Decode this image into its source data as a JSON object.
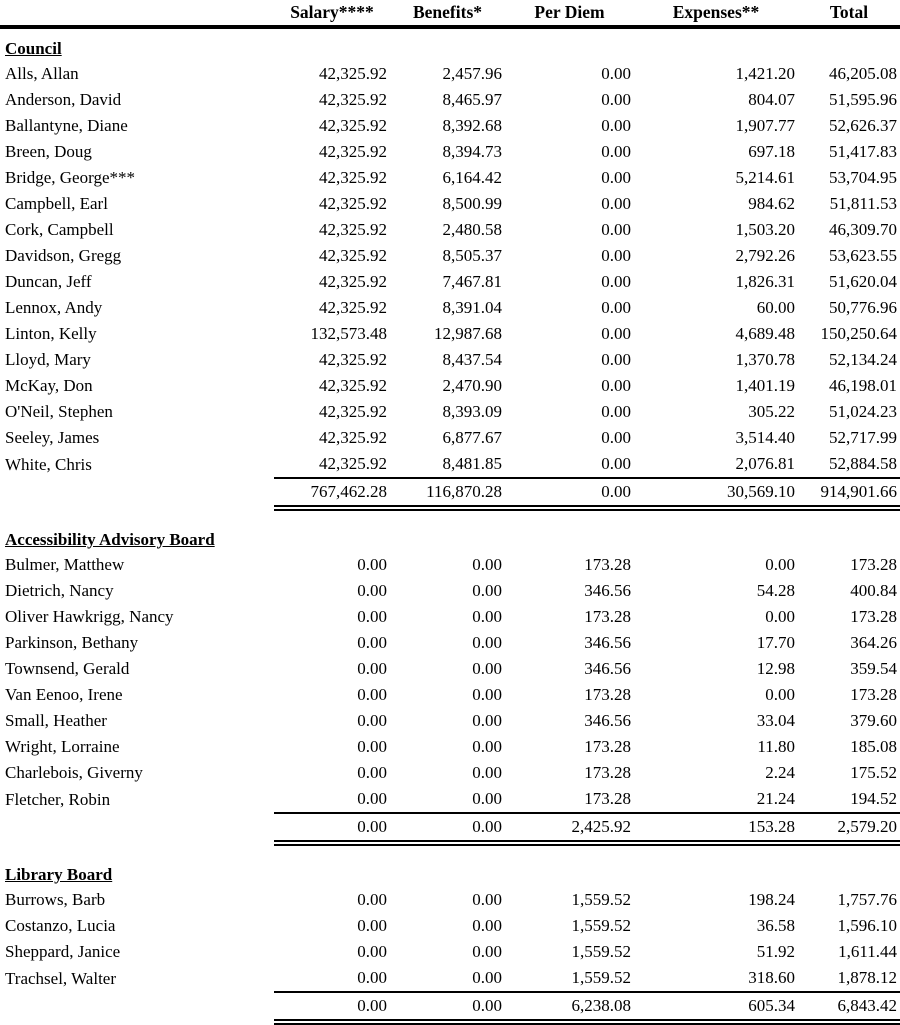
{
  "table": {
    "columns": [
      "Salary****",
      "Benefits*",
      "Per Diem",
      "Expenses**",
      "Total"
    ],
    "sections": [
      {
        "heading": "Council",
        "rows": [
          {
            "name": "Alls, Allan",
            "values": [
              "42,325.92",
              "2,457.96",
              "0.00",
              "1,421.20",
              "46,205.08"
            ]
          },
          {
            "name": "Anderson, David",
            "values": [
              "42,325.92",
              "8,465.97",
              "0.00",
              "804.07",
              "51,595.96"
            ]
          },
          {
            "name": "Ballantyne, Diane",
            "values": [
              "42,325.92",
              "8,392.68",
              "0.00",
              "1,907.77",
              "52,626.37"
            ]
          },
          {
            "name": "Breen, Doug",
            "values": [
              "42,325.92",
              "8,394.73",
              "0.00",
              "697.18",
              "51,417.83"
            ]
          },
          {
            "name": "Bridge, George***",
            "values": [
              "42,325.92",
              "6,164.42",
              "0.00",
              "5,214.61",
              "53,704.95"
            ]
          },
          {
            "name": "Campbell, Earl",
            "values": [
              "42,325.92",
              "8,500.99",
              "0.00",
              "984.62",
              "51,811.53"
            ]
          },
          {
            "name": "Cork, Campbell",
            "values": [
              "42,325.92",
              "2,480.58",
              "0.00",
              "1,503.20",
              "46,309.70"
            ]
          },
          {
            "name": "Davidson, Gregg",
            "values": [
              "42,325.92",
              "8,505.37",
              "0.00",
              "2,792.26",
              "53,623.55"
            ]
          },
          {
            "name": "Duncan, Jeff",
            "values": [
              "42,325.92",
              "7,467.81",
              "0.00",
              "1,826.31",
              "51,620.04"
            ]
          },
          {
            "name": "Lennox, Andy",
            "values": [
              "42,325.92",
              "8,391.04",
              "0.00",
              "60.00",
              "50,776.96"
            ]
          },
          {
            "name": "Linton, Kelly",
            "values": [
              "132,573.48",
              "12,987.68",
              "0.00",
              "4,689.48",
              "150,250.64"
            ]
          },
          {
            "name": "Lloyd, Mary",
            "values": [
              "42,325.92",
              "8,437.54",
              "0.00",
              "1,370.78",
              "52,134.24"
            ]
          },
          {
            "name": "McKay, Don",
            "values": [
              "42,325.92",
              "2,470.90",
              "0.00",
              "1,401.19",
              "46,198.01"
            ]
          },
          {
            "name": "O'Neil, Stephen",
            "values": [
              "42,325.92",
              "8,393.09",
              "0.00",
              "305.22",
              "51,024.23"
            ]
          },
          {
            "name": "Seeley, James",
            "values": [
              "42,325.92",
              "6,877.67",
              "0.00",
              "3,514.40",
              "52,717.99"
            ]
          },
          {
            "name": "White, Chris",
            "values": [
              "42,325.92",
              "8,481.85",
              "0.00",
              "2,076.81",
              "52,884.58"
            ]
          }
        ],
        "totals": [
          "767,462.28",
          "116,870.28",
          "0.00",
          "30,569.10",
          "914,901.66"
        ]
      },
      {
        "heading": "Accessibility Advisory Board",
        "rows": [
          {
            "name": "Bulmer, Matthew",
            "values": [
              "0.00",
              "0.00",
              "173.28",
              "0.00",
              "173.28"
            ]
          },
          {
            "name": "Dietrich, Nancy",
            "values": [
              "0.00",
              "0.00",
              "346.56",
              "54.28",
              "400.84"
            ]
          },
          {
            "name": "Oliver Hawkrigg, Nancy",
            "values": [
              "0.00",
              "0.00",
              "173.28",
              "0.00",
              "173.28"
            ]
          },
          {
            "name": "Parkinson, Bethany",
            "values": [
              "0.00",
              "0.00",
              "346.56",
              "17.70",
              "364.26"
            ]
          },
          {
            "name": "Townsend, Gerald",
            "values": [
              "0.00",
              "0.00",
              "346.56",
              "12.98",
              "359.54"
            ]
          },
          {
            "name": "Van Eenoo, Irene",
            "values": [
              "0.00",
              "0.00",
              "173.28",
              "0.00",
              "173.28"
            ]
          },
          {
            "name": "Small, Heather",
            "values": [
              "0.00",
              "0.00",
              "346.56",
              "33.04",
              "379.60"
            ]
          },
          {
            "name": "Wright, Lorraine",
            "values": [
              "0.00",
              "0.00",
              "173.28",
              "11.80",
              "185.08"
            ]
          },
          {
            "name": "Charlebois, Giverny",
            "values": [
              "0.00",
              "0.00",
              "173.28",
              "2.24",
              "175.52"
            ]
          },
          {
            "name": "Fletcher, Robin",
            "values": [
              "0.00",
              "0.00",
              "173.28",
              "21.24",
              "194.52"
            ]
          }
        ],
        "totals": [
          "0.00",
          "0.00",
          "2,425.92",
          "153.28",
          "2,579.20"
        ]
      },
      {
        "heading": "Library Board",
        "rows": [
          {
            "name": "Burrows, Barb",
            "values": [
              "0.00",
              "0.00",
              "1,559.52",
              "198.24",
              "1,757.76"
            ]
          },
          {
            "name": "Costanzo, Lucia",
            "values": [
              "0.00",
              "0.00",
              "1,559.52",
              "36.58",
              "1,596.10"
            ]
          },
          {
            "name": "Sheppard, Janice",
            "values": [
              "0.00",
              "0.00",
              "1,559.52",
              "51.92",
              "1,611.44"
            ]
          },
          {
            "name": "Trachsel, Walter",
            "values": [
              "0.00",
              "0.00",
              "1,559.52",
              "318.60",
              "1,878.12"
            ]
          }
        ],
        "totals": [
          "0.00",
          "0.00",
          "6,238.08",
          "605.34",
          "6,843.42"
        ]
      }
    ]
  }
}
